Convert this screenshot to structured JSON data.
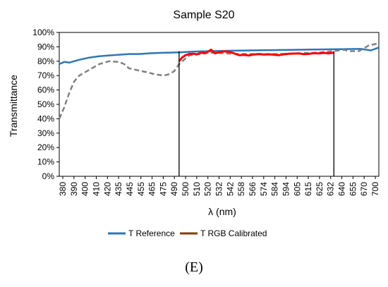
{
  "caption": "(E)",
  "colors": {
    "reference": "#2e75b6",
    "rgb_calibrated_legend": "#843c0c",
    "rgb_calibrated_line": "#ff0000",
    "dashed_series": "#808080",
    "markers": "#000000"
  },
  "chart_data": {
    "type": "line",
    "title": "Sample S20",
    "xlabel": "λ (nm)",
    "ylabel": "Transmittance",
    "x_tick_labels": [
      "380",
      "390",
      "400",
      "410",
      "420",
      "435",
      "445",
      "455",
      "465",
      "475",
      "490",
      "500",
      "510",
      "520",
      "532",
      "542",
      "558",
      "566",
      "574",
      "584",
      "594",
      "605",
      "615",
      "625",
      "632",
      "640",
      "655",
      "670",
      "700"
    ],
    "ylim": [
      0,
      100
    ],
    "yticks": [
      "0%",
      "10%",
      "20%",
      "30%",
      "40%",
      "50%",
      "60%",
      "70%",
      "80%",
      "90%",
      "100%"
    ],
    "grid": false,
    "legend_position": "bottom",
    "series": [
      {
        "name": "T Reference",
        "style": "solid",
        "x": [
          380,
          385,
          390,
          395,
          400,
          410,
          420,
          430,
          440,
          450,
          460,
          470,
          480,
          490,
          500,
          510,
          520,
          532,
          542,
          552,
          562,
          572,
          582,
          592,
          602,
          612,
          622,
          632,
          642,
          652,
          662,
          672,
          682,
          692,
          700
        ],
        "y": [
          78,
          79.5,
          79,
          80,
          81,
          82.5,
          83.5,
          84,
          84.5,
          85,
          85,
          85.5,
          85.8,
          86,
          86.2,
          86.5,
          86.8,
          87,
          87.1,
          87.3,
          87.4,
          87.5,
          87.6,
          87.7,
          87.8,
          87.9,
          88,
          88.1,
          88.2,
          88.3,
          88.4,
          88.5,
          88.6,
          87.5,
          89.5
        ]
      },
      {
        "name": "",
        "style": "dashed",
        "x": [
          380,
          385,
          390,
          395,
          400,
          405,
          410,
          420,
          430,
          440,
          445,
          450,
          460,
          470,
          475,
          480,
          485,
          490,
          495,
          500,
          510,
          530,
          560,
          600,
          640,
          660,
          665,
          670,
          680,
          690,
          700
        ],
        "y": [
          40,
          48,
          58,
          66,
          70,
          72,
          74,
          78,
          80,
          79.5,
          78,
          75,
          73.5,
          72,
          71,
          70.5,
          70,
          71,
          73,
          78,
          84,
          86,
          85,
          85,
          86,
          87.5,
          88,
          87,
          87,
          91,
          92.5
        ]
      },
      {
        "name": "T RGB Calibrated",
        "style": "solid",
        "x": [
          500,
          503,
          506,
          510,
          514,
          518,
          522,
          526,
          530,
          532,
          536,
          540,
          545,
          550,
          555,
          560,
          565,
          570,
          575,
          580,
          585,
          590,
          595,
          600,
          605,
          610,
          615,
          620,
          625,
          630,
          635,
          640,
          645,
          650,
          655
        ],
        "y": [
          80,
          82.5,
          84,
          85,
          85.2,
          84.8,
          86,
          85.5,
          87,
          88,
          85.5,
          86.2,
          86.8,
          86.5,
          85.5,
          84.2,
          84.4,
          84,
          84.7,
          85,
          84.6,
          84.8,
          84.5,
          84.2,
          84.8,
          85.2,
          85.3,
          85.4,
          84.9,
          85.1,
          85.6,
          85.4,
          85.8,
          85.5,
          86
        ]
      }
    ],
    "markers_x": [
      500,
      655
    ]
  }
}
